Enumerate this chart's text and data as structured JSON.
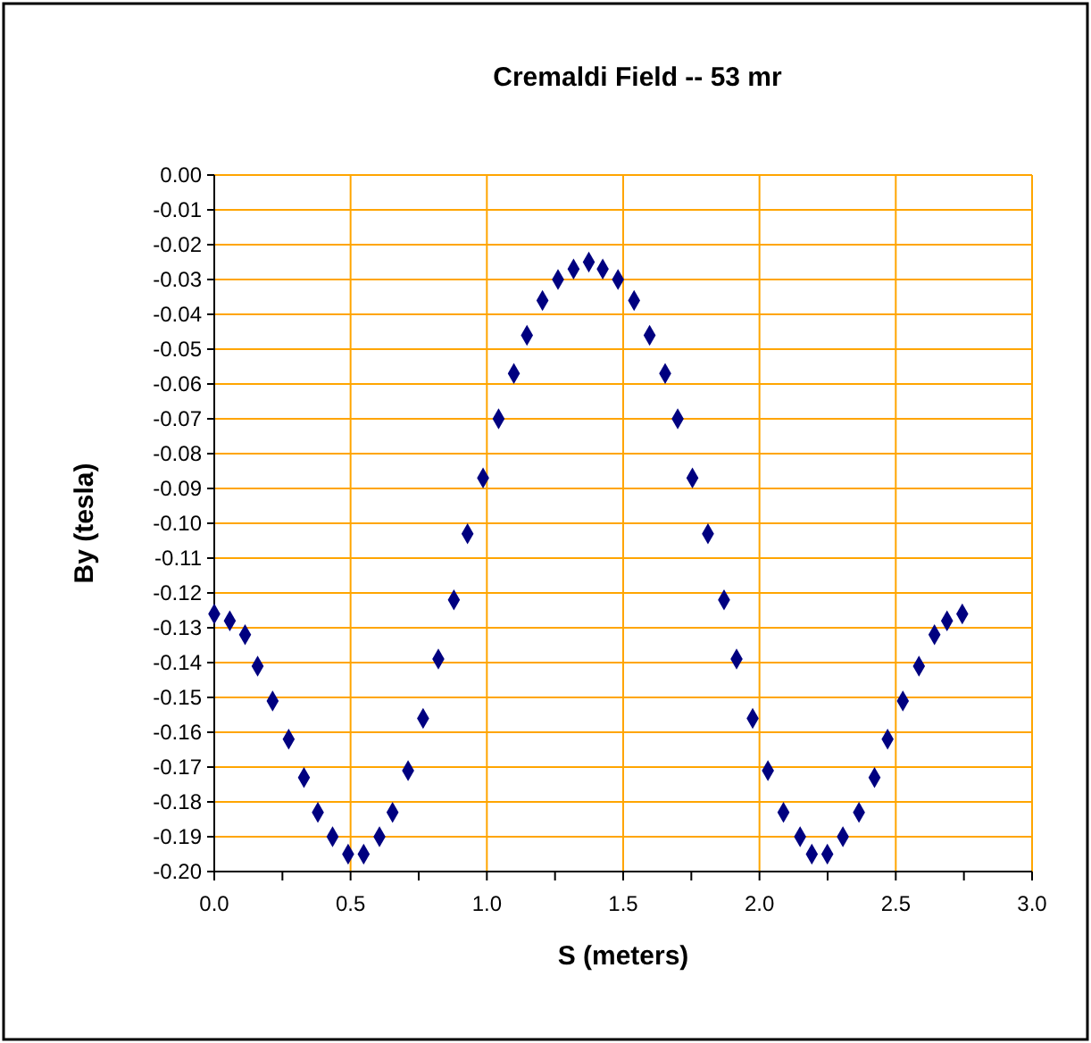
{
  "chart_data": {
    "type": "scatter",
    "title": "Cremaldi Field -- 53 mr",
    "xlabel": "S (meters)",
    "ylabel": "By (tesla)",
    "x": [
      0,
      0.057,
      0.113,
      0.159,
      0.214,
      0.273,
      0.329,
      0.38,
      0.434,
      0.491,
      0.548,
      0.606,
      0.654,
      0.711,
      0.766,
      0.822,
      0.879,
      0.929,
      0.986,
      1.043,
      1.099,
      1.147,
      1.204,
      1.261,
      1.318,
      1.374,
      1.425,
      1.481,
      1.54,
      1.597,
      1.654,
      1.7,
      1.754,
      1.811,
      1.87,
      1.916,
      1.975,
      2.031,
      2.088,
      2.149,
      2.192,
      2.249,
      2.306,
      2.365,
      2.422,
      2.47,
      2.526,
      2.585,
      2.642,
      2.688,
      2.744
    ],
    "series": [
      {
        "color": "#000080",
        "values": [
          -0.126,
          -0.128,
          -0.132,
          -0.141,
          -0.151,
          -0.162,
          -0.173,
          -0.183,
          -0.19,
          -0.195,
          -0.195,
          -0.19,
          -0.183,
          -0.171,
          -0.156,
          -0.139,
          -0.122,
          -0.103,
          -0.087,
          -0.07,
          -0.057,
          -0.046,
          -0.036,
          -0.03,
          -0.027,
          -0.025,
          -0.027,
          -0.03,
          -0.036,
          -0.046,
          -0.057,
          -0.07,
          -0.087,
          -0.103,
          -0.122,
          -0.139,
          -0.156,
          -0.171,
          -0.183,
          -0.19,
          -0.195,
          -0.195,
          -0.19,
          -0.183,
          -0.173,
          -0.162,
          -0.151,
          -0.141,
          -0.132,
          -0.128,
          -0.126
        ]
      }
    ],
    "xlim": [
      0,
      3
    ],
    "xticks": [
      {
        "value": 0,
        "label": "0.0"
      },
      {
        "value": 0.25,
        "label": null
      },
      {
        "value": 0.5,
        "label": "0.5"
      },
      {
        "value": 0.75,
        "label": null
      },
      {
        "value": 1,
        "label": "1.0"
      },
      {
        "value": 1.25,
        "label": null
      },
      {
        "value": 1.5,
        "label": "1.5"
      },
      {
        "value": 1.75,
        "label": null
      },
      {
        "value": 2,
        "label": "2.0"
      },
      {
        "value": 2.25,
        "label": null
      },
      {
        "value": 2.5,
        "label": "2.5"
      },
      {
        "value": 2.75,
        "label": null
      },
      {
        "value": 3,
        "label": "3.0"
      }
    ],
    "ylim": [
      -0.2,
      0
    ],
    "yticks": [
      {
        "value": 0,
        "label": "0.00"
      },
      {
        "value": -0.01,
        "label": "-0.01"
      },
      {
        "value": -0.02,
        "label": "-0.02"
      },
      {
        "value": -0.03,
        "label": "-0.03"
      },
      {
        "value": -0.04,
        "label": "-0.04"
      },
      {
        "value": -0.05,
        "label": "-0.05"
      },
      {
        "value": -0.06,
        "label": "-0.06"
      },
      {
        "value": -0.07,
        "label": "-0.07"
      },
      {
        "value": -0.08,
        "label": "-0.08"
      },
      {
        "value": -0.09,
        "label": "-0.09"
      },
      {
        "value": -0.1,
        "label": "-0.10"
      },
      {
        "value": -0.11,
        "label": "-0.11"
      },
      {
        "value": -0.12,
        "label": "-0.12"
      },
      {
        "value": -0.13,
        "label": "-0.13"
      },
      {
        "value": -0.14,
        "label": "-0.14"
      },
      {
        "value": -0.15,
        "label": "-0.15"
      },
      {
        "value": -0.16,
        "label": "-0.16"
      },
      {
        "value": -0.17,
        "label": "-0.17"
      },
      {
        "value": -0.18,
        "label": "-0.18"
      },
      {
        "value": -0.19,
        "label": "-0.19"
      },
      {
        "value": -0.2,
        "label": "-0.20"
      }
    ],
    "grid": true,
    "marker": "diamond"
  }
}
